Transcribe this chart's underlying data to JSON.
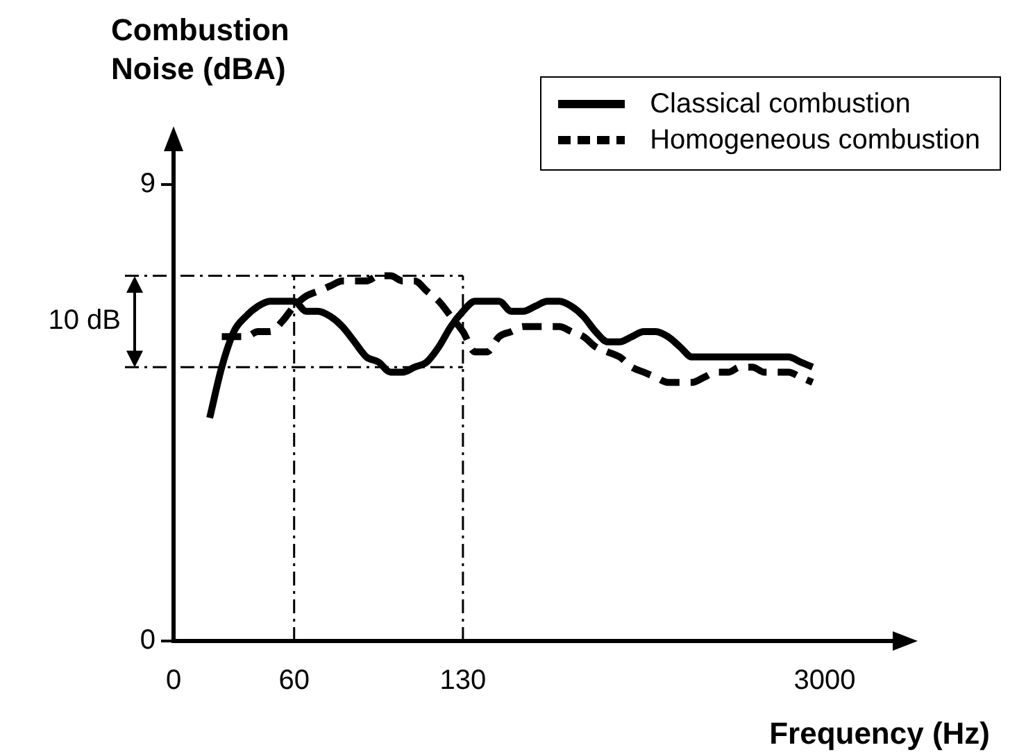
{
  "chart_data": {
    "type": "line",
    "ylabel": "Combustion Noise (dBA)",
    "xlabel": "Frequency (Hz)",
    "categories": [
      "0",
      null,
      null,
      null,
      null,
      null,
      null,
      null,
      null,
      null,
      "60",
      null,
      null,
      null,
      null,
      null,
      null,
      null,
      null,
      null,
      null,
      null,
      null,
      null,
      "130",
      null,
      null,
      null,
      null,
      null,
      null,
      null,
      null,
      null,
      null,
      null,
      null,
      null,
      null,
      null,
      null,
      null,
      null,
      null,
      null,
      null,
      null,
      null,
      null,
      null,
      null,
      null,
      null,
      null,
      "3000"
    ],
    "series": [
      {
        "name": "Classical combustion",
        "color": "#000000",
        "line_style": "solid",
        "values": [
          null,
          null,
          null,
          4.4,
          5.4,
          6.1,
          6.4,
          6.6,
          6.7,
          6.7,
          6.7,
          6.5,
          6.5,
          6.4,
          6.2,
          5.9,
          5.6,
          5.5,
          5.3,
          5.3,
          5.4,
          5.5,
          5.8,
          6.2,
          6.5,
          6.7,
          6.7,
          6.7,
          6.5,
          6.5,
          6.6,
          6.7,
          6.7,
          6.6,
          6.4,
          6.1,
          5.9,
          5.9,
          6.0,
          6.1,
          6.1,
          6.0,
          5.8,
          5.6,
          5.6,
          5.6,
          5.6,
          5.6,
          5.6,
          5.6,
          5.6,
          5.6,
          5.5,
          5.4,
          null
        ]
      },
      {
        "name": "Homogeneous combustion",
        "color": "#000000",
        "line_style": "dashed",
        "values": [
          null,
          null,
          null,
          null,
          6.0,
          6.0,
          6.0,
          6.1,
          6.1,
          6.3,
          6.6,
          6.8,
          6.9,
          7.0,
          7.1,
          7.1,
          7.1,
          7.2,
          7.2,
          7.1,
          7.1,
          6.9,
          6.7,
          6.4,
          6.1,
          5.7,
          5.7,
          6.0,
          6.1,
          6.2,
          6.2,
          6.2,
          6.2,
          6.1,
          6.0,
          5.8,
          5.7,
          5.6,
          5.4,
          5.3,
          5.2,
          5.1,
          5.1,
          5.1,
          5.2,
          5.3,
          5.3,
          5.4,
          5.4,
          5.3,
          5.3,
          5.3,
          5.2,
          5.1,
          null
        ]
      }
    ],
    "ylim": [
      0,
      9
    ],
    "yticks": [
      0,
      9
    ],
    "grid": false,
    "legend": "top right",
    "marker": "none",
    "ref_lines": [
      {
        "axis": "y",
        "value": 7.2
      },
      {
        "axis": "y",
        "value": 5.4
      },
      {
        "axis": "x",
        "value": "60"
      },
      {
        "axis": "x",
        "value": "130"
      }
    ],
    "annotations": [
      "10 dB"
    ]
  }
}
